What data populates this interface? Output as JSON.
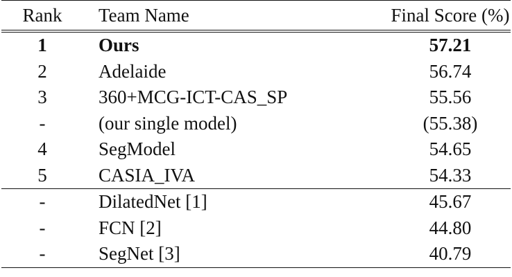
{
  "table": {
    "headers": {
      "rank": "Rank",
      "team": "Team Name",
      "score": "Final Score (%)"
    },
    "rows": [
      {
        "rank": "1",
        "team": "Ours",
        "score": "57.21",
        "bold": true
      },
      {
        "rank": "2",
        "team": "Adelaide",
        "score": "56.74"
      },
      {
        "rank": "3",
        "team": "360+MCG-ICT-CAS_SP",
        "score": "55.56"
      },
      {
        "rank": "-",
        "team": "(our single model)",
        "score": "(55.38)"
      },
      {
        "rank": "4",
        "team": "SegModel",
        "score": "54.65"
      },
      {
        "rank": "5",
        "team": "CASIA_IVA",
        "score": "54.33"
      },
      {
        "rank": "-",
        "team": "DilatedNet [1]",
        "score": "45.67"
      },
      {
        "rank": "-",
        "team": "FCN [2]",
        "score": "44.80"
      },
      {
        "rank": "-",
        "team": "SegNet [3]",
        "score": "40.79"
      }
    ]
  }
}
